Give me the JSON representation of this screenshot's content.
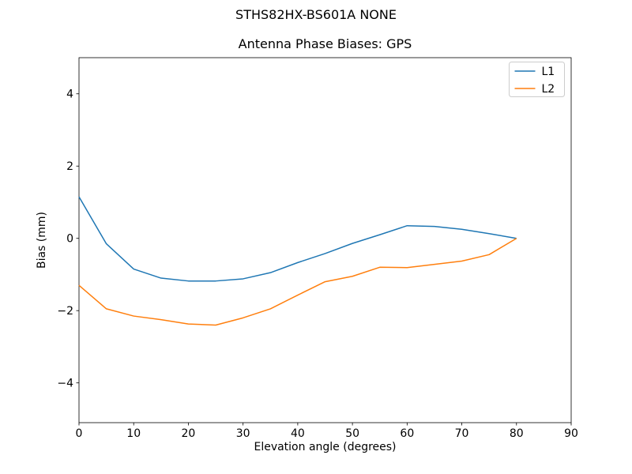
{
  "figure": {
    "suptitle": "STHS82HX-BS601A NONE",
    "background": "#ffffff"
  },
  "chart_data": {
    "type": "line",
    "title": "Antenna Phase Biases: GPS",
    "xlabel": "Elevation angle (degrees)",
    "ylabel": "Bias (mm)",
    "xlim": [
      0,
      90
    ],
    "ylim": [
      -5.1,
      5.0
    ],
    "xticks": [
      0,
      10,
      20,
      30,
      40,
      50,
      60,
      70,
      80,
      90
    ],
    "yticks": [
      -4,
      -2,
      0,
      2,
      4
    ],
    "grid": false,
    "legend_position": "upper right",
    "legend_border_color": "#cccccc",
    "axis_color": "#000000",
    "x": [
      0,
      5,
      10,
      15,
      20,
      25,
      30,
      35,
      40,
      45,
      50,
      55,
      60,
      65,
      70,
      75,
      80
    ],
    "series": [
      {
        "name": "L1",
        "color": "#1f77b4",
        "values": [
          1.15,
          -0.15,
          -0.85,
          -1.1,
          -1.18,
          -1.18,
          -1.12,
          -0.95,
          -0.67,
          -0.42,
          -0.14,
          0.1,
          0.35,
          0.33,
          0.25,
          0.13,
          0.0
        ]
      },
      {
        "name": "L2",
        "color": "#ff7f0e",
        "values": [
          -1.3,
          -1.95,
          -2.15,
          -2.25,
          -2.37,
          -2.4,
          -2.2,
          -1.95,
          -1.57,
          -1.2,
          -1.05,
          -0.8,
          -0.81,
          -0.72,
          -0.63,
          -0.45,
          0.0
        ]
      }
    ]
  }
}
